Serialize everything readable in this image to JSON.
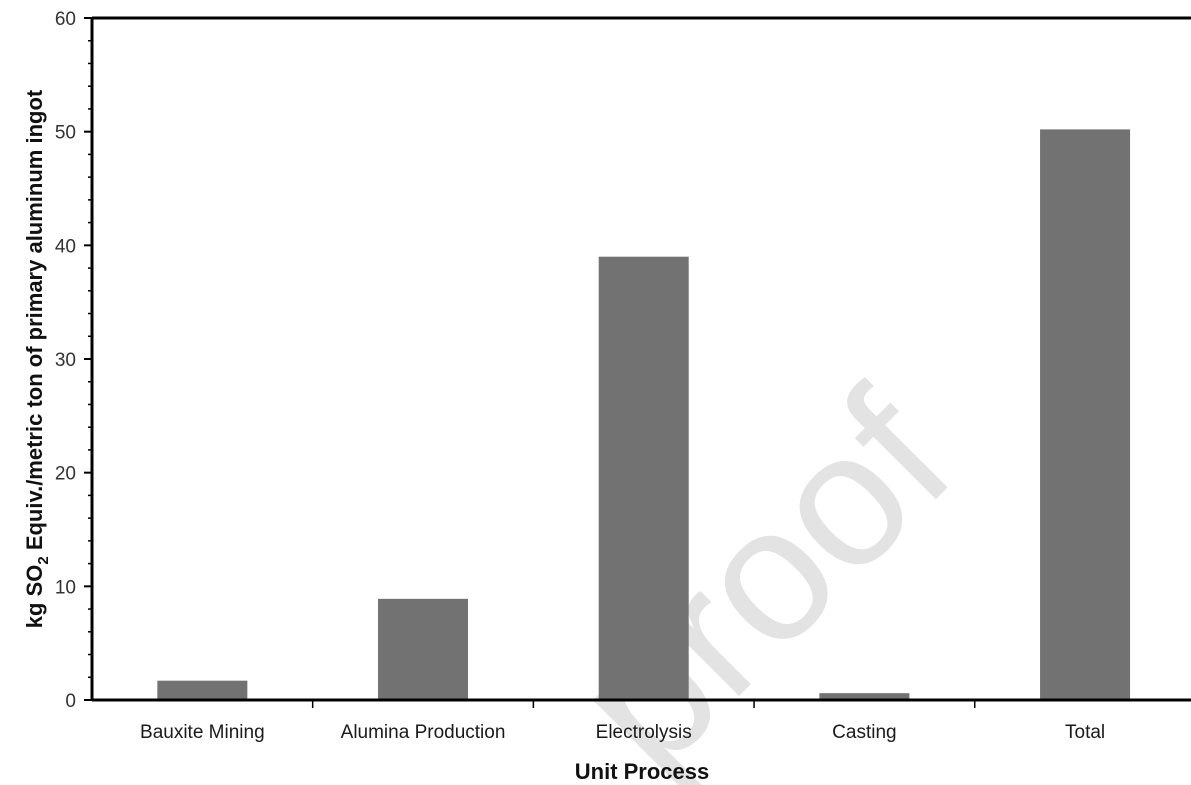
{
  "watermark": "proof",
  "chart_data": {
    "type": "bar",
    "title": "",
    "categories": [
      "Bauxite Mining",
      "Alumina Production",
      "Electrolysis",
      "Casting",
      "Total"
    ],
    "values": [
      1.7,
      8.9,
      39.0,
      0.6,
      50.2
    ],
    "xlabel": "Unit Process",
    "ylabel": {
      "prefix": "kg SO",
      "subscript": "2",
      "suffix": " Equiv./metric ton of primary aluminum ingot"
    },
    "ylim": [
      0,
      60
    ],
    "yticks": [
      "0",
      "10",
      "20",
      "30",
      "40",
      "50",
      "60"
    ],
    "grid": false,
    "bar_color": "#727272"
  }
}
